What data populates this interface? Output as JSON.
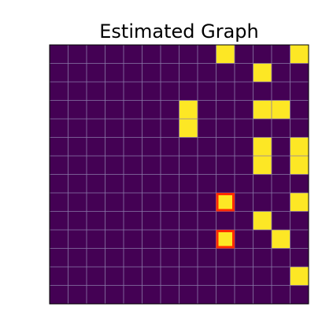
{
  "chart_data": {
    "type": "heatmap",
    "title": "Estimated Graph",
    "xlabel": "",
    "ylabel": "",
    "grid": true,
    "rows": 14,
    "cols": 14,
    "colormap": "viridis",
    "colors": {
      "low": "#440154",
      "high": "#FDE725",
      "grid": "#8a7aa8",
      "highlight": "#ff2a00"
    },
    "matrix": [
      [
        0,
        0,
        0,
        0,
        0,
        0,
        0,
        0,
        0,
        1,
        0,
        0,
        0,
        1
      ],
      [
        0,
        0,
        0,
        0,
        0,
        0,
        0,
        0,
        0,
        0,
        0,
        1,
        0,
        0
      ],
      [
        0,
        0,
        0,
        0,
        0,
        0,
        0,
        0,
        0,
        0,
        0,
        0,
        0,
        0
      ],
      [
        0,
        0,
        0,
        0,
        0,
        0,
        0,
        1,
        0,
        0,
        0,
        1,
        1,
        0
      ],
      [
        0,
        0,
        0,
        0,
        0,
        0,
        0,
        1,
        0,
        0,
        0,
        0,
        0,
        0
      ],
      [
        0,
        0,
        0,
        0,
        0,
        0,
        0,
        0,
        0,
        0,
        0,
        1,
        0,
        1
      ],
      [
        0,
        0,
        0,
        0,
        0,
        0,
        0,
        0,
        0,
        0,
        0,
        1,
        0,
        1
      ],
      [
        0,
        0,
        0,
        0,
        0,
        0,
        0,
        0,
        0,
        0,
        0,
        0,
        0,
        0
      ],
      [
        0,
        0,
        0,
        0,
        0,
        0,
        0,
        0,
        0,
        1,
        0,
        0,
        0,
        1
      ],
      [
        0,
        0,
        0,
        0,
        0,
        0,
        0,
        0,
        0,
        0,
        0,
        1,
        0,
        0
      ],
      [
        0,
        0,
        0,
        0,
        0,
        0,
        0,
        0,
        0,
        1,
        0,
        0,
        1,
        0
      ],
      [
        0,
        0,
        0,
        0,
        0,
        0,
        0,
        0,
        0,
        0,
        0,
        0,
        0,
        0
      ],
      [
        0,
        0,
        0,
        0,
        0,
        0,
        0,
        0,
        0,
        0,
        0,
        0,
        0,
        1
      ],
      [
        0,
        0,
        0,
        0,
        0,
        0,
        0,
        0,
        0,
        0,
        0,
        0,
        0,
        0
      ]
    ],
    "highlighted_cells": [
      [
        8,
        9
      ],
      [
        10,
        9
      ]
    ]
  }
}
